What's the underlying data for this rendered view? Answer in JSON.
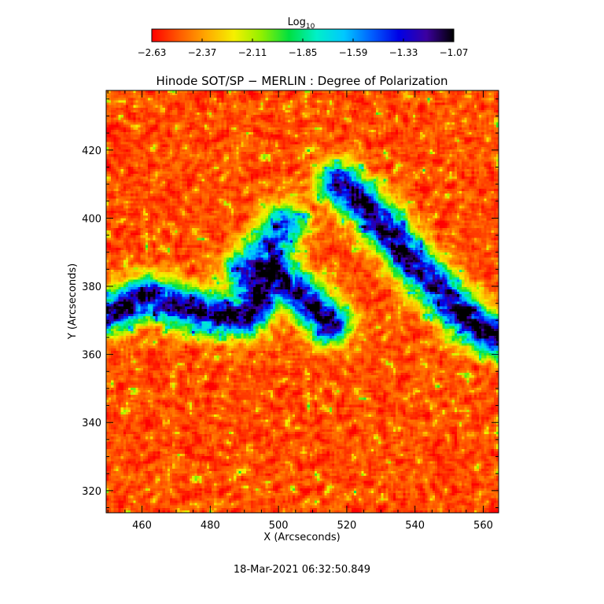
{
  "colorbar": {
    "title": "Log",
    "title_subscript": "10",
    "tick_labels": [
      "−2.63",
      "−2.37",
      "−2.11",
      "−1.85",
      "−1.59",
      "−1.33",
      "−1.07"
    ],
    "colors": [
      "#ff0000",
      "#ff5a00",
      "#ffaa00",
      "#f5f000",
      "#90f000",
      "#00e040",
      "#00f0c8",
      "#00c8ff",
      "#0060ff",
      "#0000e6",
      "#3c00a0",
      "#000000"
    ]
  },
  "chart_data": {
    "type": "heatmap",
    "title": "Hinode SOT/SP − MERLIN : Degree of Polarization",
    "xlabel": "X (Arcseconds)",
    "ylabel": "Y (Arcseconds)",
    "xlim": [
      449.5,
      564.5
    ],
    "ylim": [
      313.5,
      437.5
    ],
    "x_ticks": [
      460,
      480,
      500,
      520,
      540,
      560
    ],
    "y_ticks": [
      320,
      340,
      360,
      380,
      400,
      420
    ],
    "x_tick_labels": [
      "460",
      "480",
      "500",
      "520",
      "540",
      "560"
    ],
    "y_tick_labels": [
      "320",
      "340",
      "360",
      "380",
      "400",
      "420"
    ],
    "value_label": "Log10 Degree of Polarization",
    "value_range": [
      -2.63,
      -1.07
    ],
    "background_level": -2.5,
    "high_polarization_regions": [
      {
        "x": [
          449.5,
          462,
          478,
          490,
          500,
          508,
          515
        ],
        "y": [
          372,
          377,
          372,
          371,
          382,
          376,
          369
        ],
        "peak": -1.1
      },
      {
        "x": [
          518,
          524,
          530,
          536,
          542,
          548,
          554,
          560,
          564
        ],
        "y": [
          410,
          405,
          399,
          391,
          384,
          378,
          371,
          367,
          365
        ],
        "peak": -1.1
      },
      {
        "x": [
          490,
          496,
          502
        ],
        "y": [
          385,
          390,
          398
        ],
        "peak": -1.45
      }
    ]
  },
  "footer": {
    "timestamp": "18-Mar-2021 06:32:50.849"
  }
}
